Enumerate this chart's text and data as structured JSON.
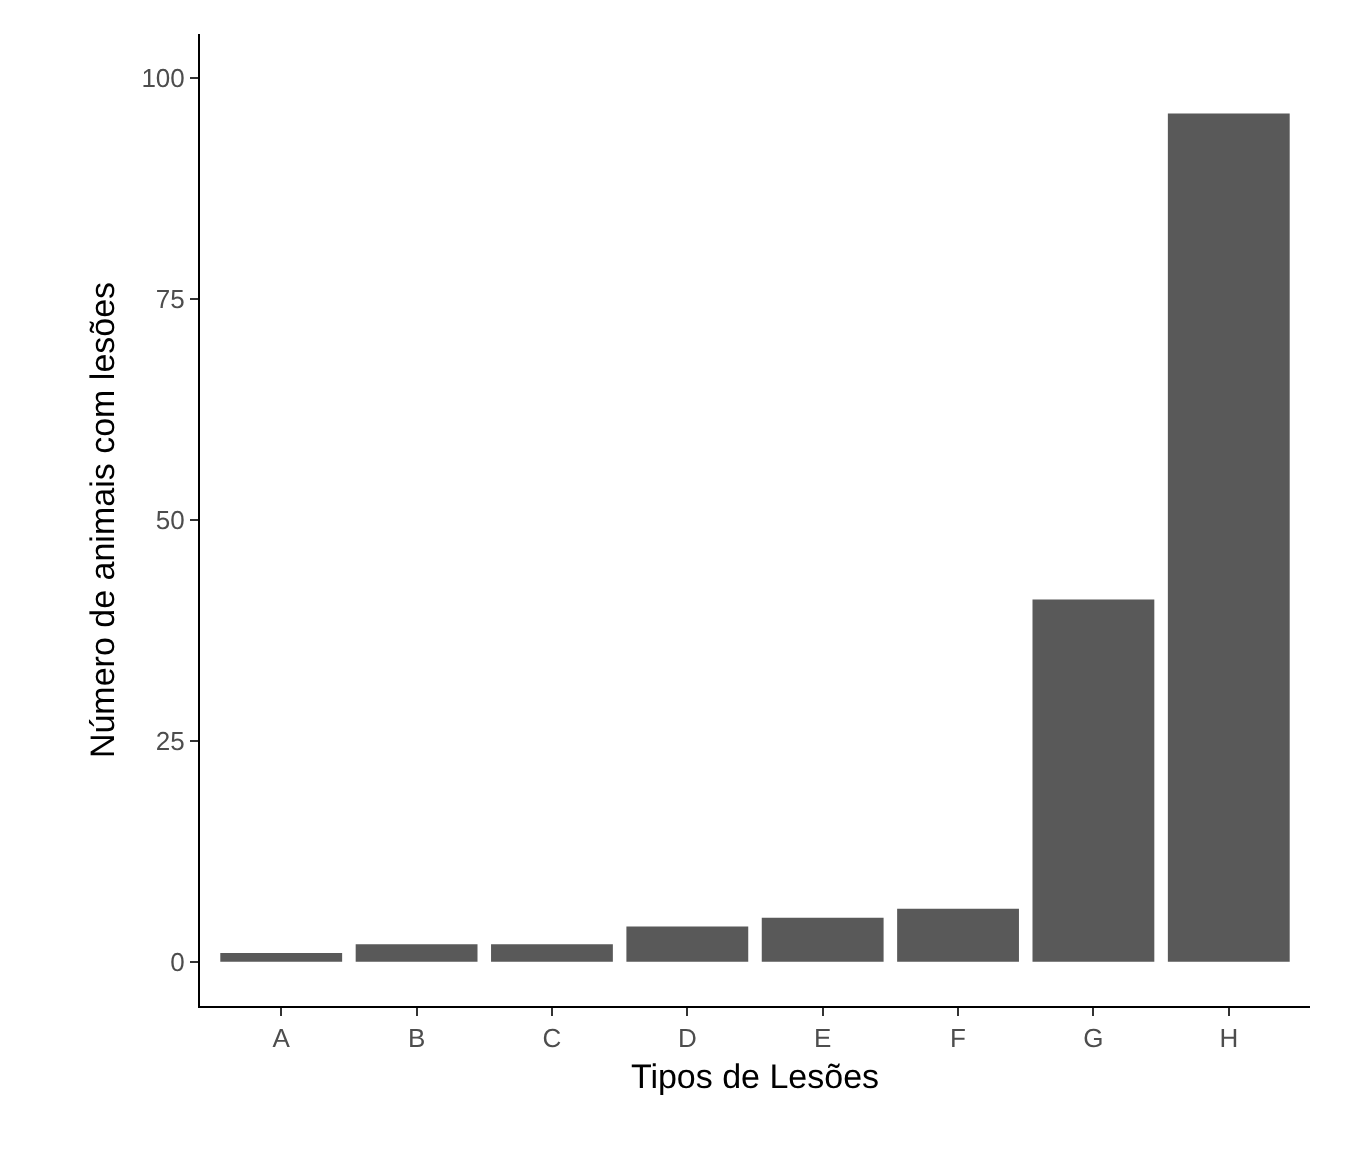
{
  "chart_data": {
    "type": "bar",
    "xlabel": "Tipos de Lesões",
    "ylabel": "Número de animais com lesões",
    "categories": [
      "A",
      "B",
      "C",
      "D",
      "E",
      "F",
      "G",
      "H"
    ],
    "values": [
      1,
      2,
      2,
      4,
      5,
      6,
      41,
      96
    ],
    "color": "#595959",
    "ylim": [
      -5,
      105
    ],
    "yticks": [
      0,
      25,
      50,
      75,
      100
    ]
  }
}
